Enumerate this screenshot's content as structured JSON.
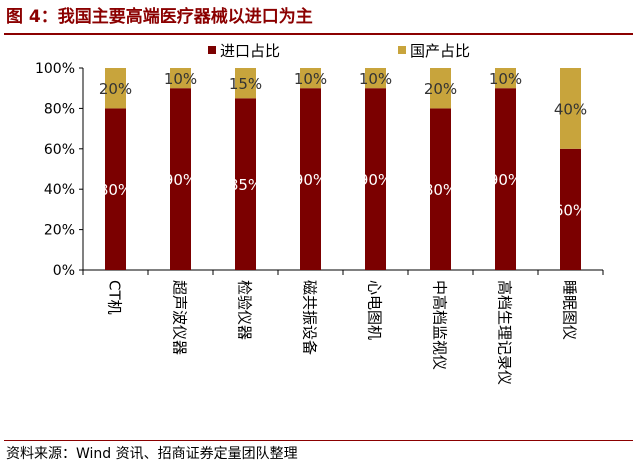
{
  "title": "图 4：我国主要高端医疗器械以进口为主",
  "source": "资料来源：Wind 资讯、招商证券定量团队整理",
  "colors": {
    "import": "#7b0000",
    "domestic": "#c8a43c",
    "accent": "#8b0000"
  },
  "chart_data": {
    "type": "bar",
    "stacked": true,
    "categories": [
      "CT机",
      "超声波仪器",
      "检验仪器",
      "磁共振设备",
      "心电图机",
      "中高档监视仪",
      "高档生理记录仪",
      "睡眠图仪"
    ],
    "series": [
      {
        "name": "进口占比",
        "values": [
          80,
          90,
          85,
          90,
          90,
          80,
          90,
          60
        ],
        "labels": [
          "80%",
          "90%",
          "85%",
          "90%",
          "90%",
          "80%",
          "90%",
          "60%"
        ]
      },
      {
        "name": "国产占比",
        "values": [
          20,
          10,
          15,
          10,
          10,
          20,
          10,
          40
        ],
        "labels": [
          "20%",
          "10%",
          "15%",
          "10%",
          "10%",
          "20%",
          "10%",
          "40%"
        ]
      }
    ],
    "yticks": [
      "0%",
      "20%",
      "40%",
      "60%",
      "80%",
      "100%"
    ],
    "ylim": [
      0,
      100
    ],
    "legend": "top"
  }
}
